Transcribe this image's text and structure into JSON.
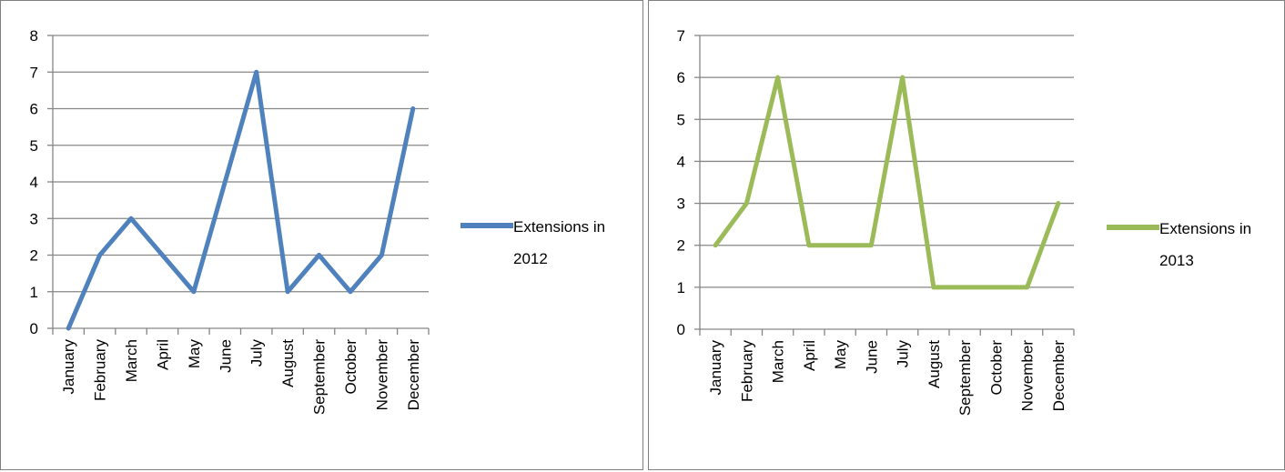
{
  "chart_data": [
    {
      "type": "line",
      "categories": [
        "January",
        "February",
        "March",
        "April",
        "May",
        "June",
        "July",
        "August",
        "September",
        "October",
        "November",
        "December"
      ],
      "series": [
        {
          "name": "Extensions in 2012",
          "values": [
            0,
            2,
            3,
            2,
            1,
            4,
            7,
            1,
            2,
            1,
            2,
            6
          ],
          "color": "#4f81bd"
        }
      ],
      "legend_lines": [
        "Extensions in",
        "2012"
      ],
      "ylim": [
        0,
        8
      ],
      "yticks": [
        "0",
        "1",
        "2",
        "3",
        "4",
        "5",
        "6",
        "7",
        "8"
      ],
      "grid": true,
      "legend_position": "right"
    },
    {
      "type": "line",
      "categories": [
        "January",
        "February",
        "March",
        "April",
        "May",
        "June",
        "July",
        "August",
        "September",
        "October",
        "November",
        "December"
      ],
      "series": [
        {
          "name": "Extensions in 2013",
          "values": [
            2,
            3,
            6,
            2,
            2,
            2,
            6,
            1,
            1,
            1,
            1,
            3
          ],
          "color": "#9bbb59"
        }
      ],
      "legend_lines": [
        "Extensions in",
        "2013"
      ],
      "ylim": [
        0,
        7
      ],
      "yticks": [
        "0",
        "1",
        "2",
        "3",
        "4",
        "5",
        "6",
        "7"
      ],
      "grid": true,
      "legend_position": "right"
    }
  ]
}
